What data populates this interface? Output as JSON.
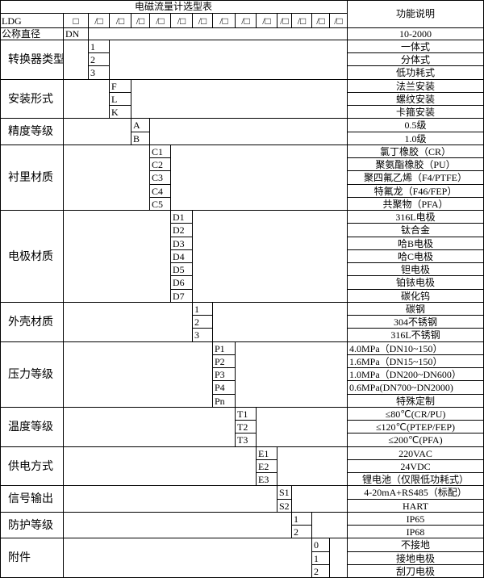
{
  "title": "电磁流量计选型表",
  "desc_header": "功能说明",
  "model_prefix": "LDG",
  "model_slots": [
    "□",
    "/□",
    "/□",
    "/□",
    "/□",
    "/□",
    "/□",
    "/□",
    "/□",
    "/□",
    "/□",
    "/□",
    "/□",
    "/□"
  ],
  "diameter": {
    "label": "公称直径",
    "code": "DN",
    "desc": "10-2000"
  },
  "groups": [
    {
      "label": "转换器类型",
      "rows": [
        {
          "code": "1",
          "desc": "一体式"
        },
        {
          "code": "2",
          "desc": "分体式"
        },
        {
          "code": "3",
          "desc": "低功耗式"
        }
      ]
    },
    {
      "label": "安装形式",
      "rows": [
        {
          "code": "F",
          "desc": "法兰安装"
        },
        {
          "code": "L",
          "desc": "螺纹安装"
        },
        {
          "code": "K",
          "desc": "卡箍安装"
        }
      ]
    },
    {
      "label": "精度等级",
      "rows": [
        {
          "code": "A",
          "desc": "0.5级"
        },
        {
          "code": "B",
          "desc": "1.0级"
        }
      ]
    },
    {
      "label": "衬里材质",
      "rows": [
        {
          "code": "C1",
          "desc": "氯丁橡胶（CR）"
        },
        {
          "code": "C2",
          "desc": "聚氨酯橡胶（PU）"
        },
        {
          "code": "C3",
          "desc": "聚四氟乙烯（F4/PTFE）"
        },
        {
          "code": "C4",
          "desc": "特氟龙（F46/FEP）"
        },
        {
          "code": "C5",
          "desc": "共聚物（PFA）"
        }
      ]
    },
    {
      "label": "电极材质",
      "rows": [
        {
          "code": "D1",
          "desc": "316L电极"
        },
        {
          "code": "D2",
          "desc": "钛合金"
        },
        {
          "code": "D3",
          "desc": "哈B电极"
        },
        {
          "code": "D4",
          "desc": "哈C电极"
        },
        {
          "code": "D5",
          "desc": "钽电极"
        },
        {
          "code": "D6",
          "desc": "铂铱电极"
        },
        {
          "code": "D7",
          "desc": "碳化钨"
        }
      ]
    },
    {
      "label": "外壳材质",
      "rows": [
        {
          "code": "1",
          "desc": "碳钢"
        },
        {
          "code": "2",
          "desc": "304不锈钢"
        },
        {
          "code": "3",
          "desc": "316L不锈钢"
        }
      ]
    },
    {
      "label": "压力等级",
      "rows": [
        {
          "code": "P1",
          "desc": "4.0MPa（DN10~150）",
          "left": true
        },
        {
          "code": "P2",
          "desc": "1.6MPa（DN15~150）",
          "left": true
        },
        {
          "code": "P3",
          "desc": "1.0MPa（DN200~DN600）",
          "left": true
        },
        {
          "code": "P4",
          "desc": "0.6MPa(DN700~DN2000)",
          "left": true
        },
        {
          "code": "Pn",
          "desc": "特殊定制"
        }
      ]
    },
    {
      "label": "温度等级",
      "rows": [
        {
          "code": "T1",
          "desc": "≤80℃(CR/PU)"
        },
        {
          "code": "T2",
          "desc": "≤120℃(PTEP/FEP)"
        },
        {
          "code": "T3",
          "desc": "≤200℃(PFA)"
        }
      ]
    },
    {
      "label": "供电方式",
      "rows": [
        {
          "code": "E1",
          "desc": "220VAC"
        },
        {
          "code": "E2",
          "desc": "24VDC"
        },
        {
          "code": "E3",
          "desc": "锂电池（仅限低功耗式）"
        }
      ]
    },
    {
      "label": "信号输出",
      "rows": [
        {
          "code": "S1",
          "desc": "4-20mA+RS485（标配）"
        },
        {
          "code": "S2",
          "desc": "HART"
        }
      ]
    },
    {
      "label": "防护等级",
      "rows": [
        {
          "code": "1",
          "desc": "IP65"
        },
        {
          "code": "2",
          "desc": "IP68"
        }
      ]
    },
    {
      "label": "附件",
      "rows": [
        {
          "code": "0",
          "desc": "不接地"
        },
        {
          "code": "1",
          "desc": "接地电极"
        },
        {
          "code": "2",
          "desc": "刮刀电极"
        }
      ]
    }
  ]
}
